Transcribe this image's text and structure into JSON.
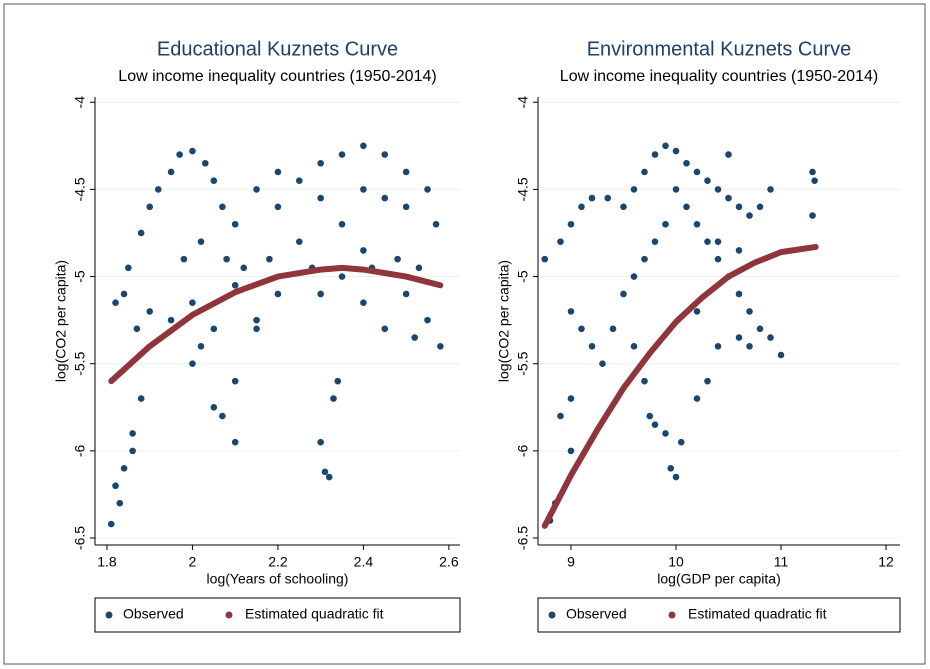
{
  "chart_data": [
    {
      "type": "scatter",
      "title": "Educational Kuznets Curve",
      "subtitle": "Low income inequality countries (1950-2014)",
      "xlabel": "log(Years of schooling)",
      "ylabel": "log(CO2 per capita)",
      "xlim": [
        1.772,
        2.626
      ],
      "ylim": [
        -6.54,
        -3.97
      ],
      "xticks": [
        1.8,
        2,
        2.2,
        2.4,
        2.6
      ],
      "yticks": [
        -4,
        -4.5,
        -5,
        -5.5,
        -6,
        -6.5
      ],
      "grid": true,
      "series": [
        {
          "name": "Observed",
          "color": "#1a476f",
          "mode": "markers",
          "x": [
            1.85,
            1.88,
            1.9,
            1.92,
            1.95,
            1.97,
            2.0,
            2.03,
            2.05,
            2.07,
            2.1,
            2.15,
            2.2,
            2.25,
            2.3,
            2.35,
            2.4,
            2.45,
            2.5,
            2.55,
            2.57,
            2.2,
            2.3,
            2.4,
            2.45,
            2.35,
            2.5,
            2.25,
            2.4,
            1.82,
            1.84,
            1.87,
            1.9,
            1.95,
            2.0,
            2.05,
            2.1,
            2.15,
            2.2,
            2.3,
            2.4,
            2.45,
            2.5,
            2.55,
            2.58,
            2.52,
            2.15,
            1.81,
            1.82,
            1.83,
            1.84,
            1.86,
            1.88,
            1.86,
            2.05,
            2.07,
            2.1,
            2.1,
            2.3,
            2.31,
            2.32,
            2.33,
            2.34,
            2.0,
            2.02,
            1.98,
            2.02,
            2.08,
            2.12,
            2.18,
            2.28,
            2.35,
            2.42,
            2.48,
            2.53
          ],
          "values": [
            -4.95,
            -4.75,
            -4.6,
            -4.5,
            -4.4,
            -4.3,
            -4.28,
            -4.35,
            -4.45,
            -4.6,
            -4.7,
            -4.5,
            -4.4,
            -4.45,
            -4.35,
            -4.3,
            -4.25,
            -4.3,
            -4.4,
            -4.5,
            -4.7,
            -4.6,
            -4.55,
            -4.5,
            -4.55,
            -4.7,
            -4.6,
            -4.8,
            -4.85,
            -5.15,
            -5.1,
            -5.3,
            -5.2,
            -5.25,
            -5.15,
            -5.3,
            -5.05,
            -5.25,
            -5.1,
            -5.1,
            -5.15,
            -5.3,
            -5.1,
            -5.25,
            -5.4,
            -5.35,
            -5.3,
            -6.42,
            -6.2,
            -6.3,
            -6.1,
            -5.9,
            -5.7,
            -6.0,
            -5.75,
            -5.8,
            -5.95,
            -5.6,
            -5.95,
            -6.12,
            -6.15,
            -5.7,
            -5.6,
            -5.5,
            -5.4,
            -4.9,
            -4.8,
            -4.9,
            -4.95,
            -4.9,
            -4.95,
            -5.0,
            -4.95,
            -4.9,
            -4.95
          ]
        },
        {
          "name": "Estimated quadratic fit",
          "color": "#90353b",
          "mode": "line",
          "x": [
            1.81,
            1.9,
            2.0,
            2.1,
            2.2,
            2.3,
            2.35,
            2.4,
            2.5,
            2.58
          ],
          "values": [
            -5.6,
            -5.4,
            -5.22,
            -5.09,
            -5.0,
            -4.96,
            -4.95,
            -4.96,
            -5.0,
            -5.05
          ]
        }
      ]
    },
    {
      "type": "scatter",
      "title": "Environmental Kuznets Curve",
      "subtitle": "Low income inequality countries (1950-2014)",
      "xlabel": "log(GDP per capita)",
      "ylabel": "log(CO2 per capita)",
      "xlim": [
        8.686,
        12.133
      ],
      "ylim": [
        -6.54,
        -3.97
      ],
      "xticks": [
        9,
        10,
        11,
        12
      ],
      "yticks": [
        -4,
        -4.5,
        -5,
        -5.5,
        -6,
        -6.5
      ],
      "grid": true,
      "series": [
        {
          "name": "Observed",
          "color": "#1a476f",
          "mode": "markers",
          "x": [
            8.75,
            8.9,
            9.0,
            9.1,
            9.2,
            9.35,
            9.5,
            9.6,
            9.7,
            9.8,
            9.9,
            10.0,
            10.1,
            10.2,
            10.3,
            10.4,
            10.5,
            10.6,
            10.7,
            10.8,
            10.9,
            11.3,
            11.32,
            11.3,
            10.0,
            10.1,
            10.2,
            10.3,
            10.4,
            10.5,
            10.6,
            10.7,
            10.8,
            10.9,
            11.0,
            10.5,
            10.4,
            10.6,
            9.0,
            9.1,
            9.2,
            9.3,
            9.4,
            9.5,
            9.6,
            9.7,
            9.8,
            9.9,
            9.6,
            9.7,
            9.75,
            9.8,
            9.9,
            9.95,
            10.0,
            10.05,
            10.2,
            10.3,
            9.0,
            8.9,
            8.85,
            8.8,
            9.0,
            10.2,
            10.4,
            10.6,
            10.7
          ],
          "values": [
            -4.9,
            -4.8,
            -4.7,
            -4.6,
            -4.55,
            -4.55,
            -4.6,
            -4.5,
            -4.4,
            -4.3,
            -4.25,
            -4.28,
            -4.35,
            -4.4,
            -4.45,
            -4.5,
            -4.55,
            -4.6,
            -4.65,
            -4.6,
            -4.5,
            -4.4,
            -4.45,
            -4.65,
            -4.5,
            -4.6,
            -4.7,
            -4.8,
            -4.9,
            -5.0,
            -5.1,
            -5.2,
            -5.3,
            -5.35,
            -5.45,
            -4.3,
            -4.8,
            -4.85,
            -5.2,
            -5.3,
            -5.4,
            -5.5,
            -5.3,
            -5.1,
            -5.0,
            -4.9,
            -4.8,
            -4.7,
            -5.4,
            -5.6,
            -5.8,
            -5.85,
            -5.9,
            -6.1,
            -6.15,
            -5.95,
            -5.7,
            -5.6,
            -5.7,
            -5.8,
            -6.3,
            -6.4,
            -6.0,
            -5.2,
            -5.4,
            -5.35,
            -5.4
          ]
        },
        {
          "name": "Estimated quadratic fit",
          "color": "#90353b",
          "mode": "line",
          "x": [
            8.75,
            9,
            9.25,
            9.5,
            9.75,
            10,
            10.25,
            10.5,
            10.75,
            11,
            11.33
          ],
          "values": [
            -6.43,
            -6.14,
            -5.88,
            -5.64,
            -5.44,
            -5.26,
            -5.12,
            -5.0,
            -4.92,
            -4.86,
            -4.83
          ]
        }
      ]
    }
  ]
}
